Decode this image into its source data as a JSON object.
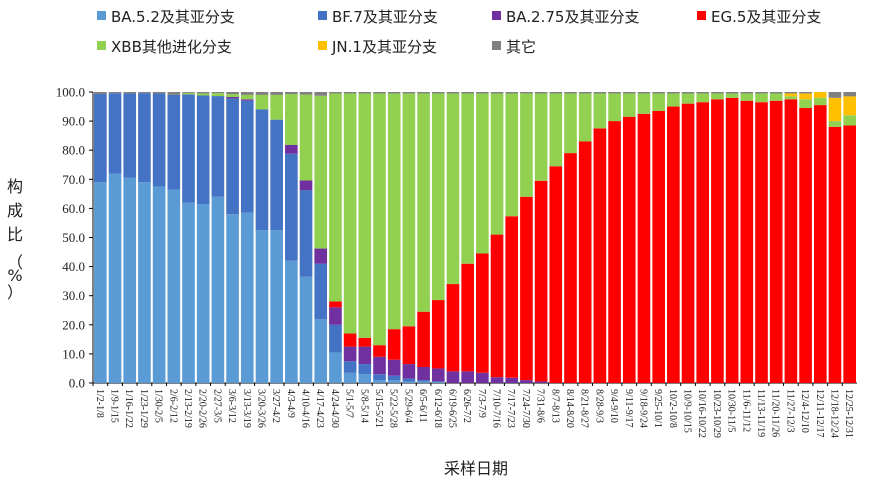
{
  "chart_data": {
    "type": "bar",
    "stacked": true,
    "xlabel": "采样日期",
    "ylabel_chars": [
      "构",
      "成",
      "比",
      "（",
      "%",
      "）"
    ],
    "ylim": [
      0,
      100
    ],
    "yticks": [
      "0.0",
      "10.0",
      "20.0",
      "30.0",
      "40.0",
      "50.0",
      "60.0",
      "70.0",
      "80.0",
      "90.0",
      "100.0"
    ],
    "legend_position": "top",
    "categories": [
      "1/2-1/8",
      "1/9-1/15",
      "1/16-1/22",
      "1/23-1/29",
      "1/30-2/5",
      "2/6-2/12",
      "2/13-2/19",
      "2/20-2/26",
      "2/27-3/5",
      "3/6-3/12",
      "3/13-3/19",
      "3/20-3/26",
      "3/27-4/2",
      "4/3-4/9",
      "4/10-4/16",
      "4/17-4/23",
      "4/24-4/30",
      "5/1-5/7",
      "5/8-5/14",
      "5/15-5/21",
      "5/22-5/28",
      "5/29-6/4",
      "6/5-6/11",
      "6/12-6/18",
      "6/19-6/25",
      "6/26-7/2",
      "7/3-7/9",
      "7/10-7/16",
      "7/17-7/23",
      "7/24-7/30",
      "7/31-8/6",
      "8/7-8/13",
      "8/14-8/20",
      "8/21-8/27",
      "8/28-9/3",
      "9/4-9/10",
      "9/11-9/17",
      "9/18-9/24",
      "9/25-10/1",
      "10/2-10/8",
      "10/9-10/15",
      "10/16-10/22",
      "10/23-10/29",
      "10/30-11/5",
      "11/6-11/12",
      "11/13-11/19",
      "11/20-11/26",
      "11/27-12/3",
      "12/4-12/10",
      "12/11-12/17",
      "12/18-12/24",
      "12/25-12/31"
    ],
    "series": [
      {
        "name": "BA.5.2及其亚分支",
        "color": "#5b9bd5",
        "values": [
          69,
          72,
          70.5,
          69,
          67.5,
          66.5,
          62,
          61.5,
          64,
          58,
          58.5,
          52.5,
          52.5,
          42,
          36.5,
          22,
          10.5,
          3.5,
          3,
          1,
          1,
          0.5,
          0.5,
          0.5,
          0,
          0,
          0,
          0,
          0,
          0,
          0,
          0,
          0,
          0,
          0,
          0,
          0,
          0,
          0,
          0,
          0,
          0,
          0,
          0,
          0,
          0,
          0,
          0,
          0,
          0,
          0,
          0
        ]
      },
      {
        "name": "BF.7及其亚分支",
        "color": "#4472c4",
        "values": [
          30.3,
          27.6,
          29,
          30.6,
          32,
          32.5,
          37.2,
          37.3,
          34.6,
          39.8,
          38.5,
          41.5,
          38,
          36.8,
          29.8,
          19,
          9.5,
          4,
          3.5,
          2,
          1.5,
          1,
          0.5,
          0,
          0,
          0,
          0,
          0,
          0,
          0,
          0,
          0,
          0,
          0,
          0,
          0,
          0,
          0,
          0,
          0,
          0,
          0,
          0,
          0,
          0,
          0,
          0,
          0,
          0,
          0,
          0,
          0
        ]
      },
      {
        "name": "BA.2.75及其亚分支",
        "color": "#7030a0",
        "values": [
          0,
          0,
          0,
          0,
          0,
          0,
          0,
          0,
          0,
          0.5,
          0.5,
          0,
          0,
          3,
          3.3,
          5.2,
          6,
          5,
          6,
          6,
          5.5,
          5,
          4.5,
          4.5,
          4,
          4,
          3.5,
          2,
          1.8,
          1,
          0.5,
          0,
          0,
          0,
          0,
          0,
          0,
          0,
          0,
          0,
          0,
          0,
          0,
          0,
          0,
          0,
          0,
          0,
          0,
          0,
          0,
          0
        ]
      },
      {
        "name": "EG.5及其亚分支",
        "color": "#ff0000",
        "values": [
          0,
          0,
          0,
          0,
          0,
          0,
          0,
          0,
          0,
          0,
          0,
          0,
          0,
          0,
          0,
          0,
          2,
          4.5,
          3,
          4,
          10.5,
          13,
          19,
          23.5,
          30,
          37,
          41,
          49,
          55.5,
          63,
          69,
          74.5,
          79,
          83,
          87.5,
          90,
          91.5,
          92.5,
          93.5,
          95,
          96,
          96.5,
          97.5,
          98,
          97,
          96.5,
          97,
          97.5,
          94.5,
          95.5,
          88,
          88.5
        ]
      },
      {
        "name": "XBB其他进化分支",
        "color": "#92d050",
        "values": [
          0,
          0,
          0,
          0,
          0,
          0,
          0.5,
          0.7,
          1,
          1,
          1.5,
          5,
          8.5,
          17.5,
          29.5,
          52.5,
          71.5,
          82.5,
          84,
          86.5,
          81,
          80,
          75,
          71,
          65.5,
          58.5,
          55,
          48.5,
          42.2,
          35.5,
          30,
          25,
          20.5,
          16.5,
          12,
          9.5,
          8,
          7,
          6,
          4.5,
          3.5,
          3,
          2,
          1.5,
          2.5,
          3,
          2.5,
          1,
          3,
          2.5,
          2,
          3.5
        ]
      },
      {
        "name": "JN.1及其亚分支",
        "color": "#ffc000",
        "values": [
          0,
          0,
          0,
          0,
          0,
          0,
          0,
          0,
          0,
          0,
          0,
          0,
          0,
          0,
          0,
          0,
          0,
          0,
          0,
          0,
          0,
          0,
          0,
          0,
          0,
          0,
          0,
          0,
          0,
          0,
          0,
          0,
          0,
          0,
          0,
          0,
          0,
          0,
          0,
          0,
          0,
          0,
          0,
          0,
          0,
          0,
          0,
          1,
          2,
          2,
          8,
          6.5
        ]
      },
      {
        "name": "其它",
        "color": "#808080",
        "values": [
          0.7,
          0.4,
          0.5,
          0.4,
          0.5,
          1,
          0.3,
          0.5,
          0.4,
          0.7,
          1,
          1,
          1,
          0.7,
          0.9,
          1.3,
          0.5,
          0.5,
          0.5,
          0.5,
          0.5,
          0.5,
          0.5,
          0.5,
          0.5,
          0.5,
          0.5,
          0.5,
          0.5,
          0.5,
          0.5,
          0.5,
          0.5,
          0.5,
          0.5,
          0.5,
          0.5,
          0.5,
          0.5,
          0.5,
          0.5,
          0.5,
          0.5,
          0.5,
          0.5,
          0.5,
          0.5,
          0.5,
          0.5,
          0,
          2,
          1.5
        ]
      }
    ]
  }
}
